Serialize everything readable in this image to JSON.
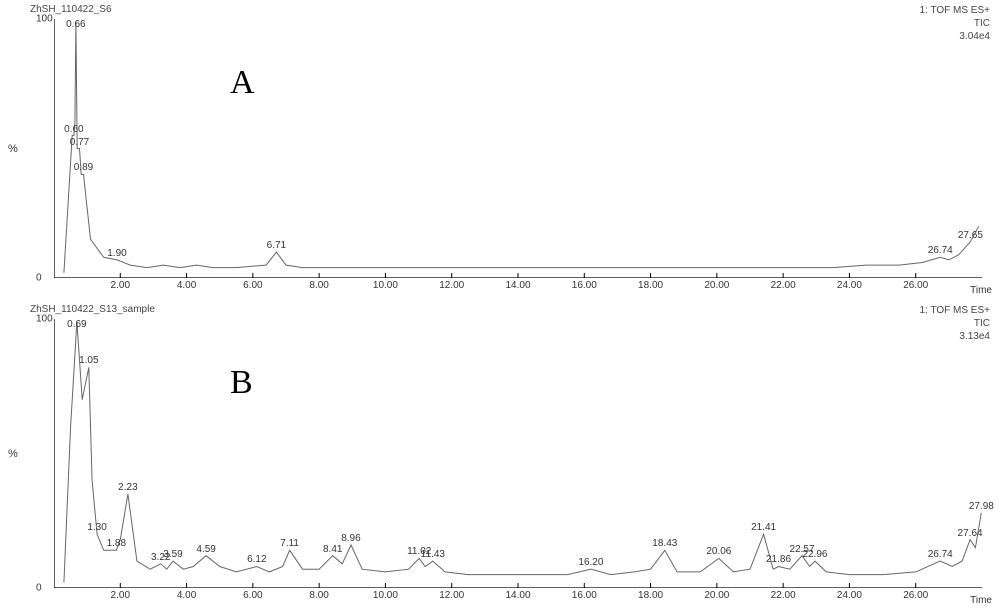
{
  "chart_a": {
    "type": "line",
    "sample_label": "ZhSH_110422_S6",
    "meta_lines": [
      "1: TOF MS ES+",
      "TIC",
      "3.04e4"
    ],
    "panel_letter": "A",
    "yaxis_label": "%",
    "xaxis_label": "Time",
    "xlim_min": 0,
    "xlim_max": 28,
    "ylim_min": 0,
    "ylim_max": 100,
    "xticks": [
      2.0,
      4.0,
      6.0,
      8.0,
      10.0,
      12.0,
      14.0,
      16.0,
      18.0,
      20.0,
      22.0,
      24.0,
      26.0
    ],
    "yticks": [
      0,
      100
    ],
    "line_color": "#666666",
    "axis_color": "#000000",
    "peaks": [
      {
        "rt": 0.6,
        "y": 55,
        "label": "0.60"
      },
      {
        "rt": 0.66,
        "y": 99,
        "label": "0.66"
      },
      {
        "rt": 0.77,
        "y": 50,
        "label": "0.77"
      },
      {
        "rt": 0.89,
        "y": 40,
        "label": "0.89"
      },
      {
        "rt": 1.9,
        "y": 7,
        "label": "1.90"
      },
      {
        "rt": 6.71,
        "y": 10,
        "label": "6.71"
      },
      {
        "rt": 26.74,
        "y": 8,
        "label": "26.74"
      },
      {
        "rt": 27.65,
        "y": 14,
        "label": "27.65"
      }
    ],
    "trace": [
      [
        0.3,
        2
      ],
      [
        0.55,
        55
      ],
      [
        0.6,
        55
      ],
      [
        0.63,
        60
      ],
      [
        0.66,
        99
      ],
      [
        0.7,
        50
      ],
      [
        0.77,
        50
      ],
      [
        0.82,
        40
      ],
      [
        0.89,
        40
      ],
      [
        1.1,
        15
      ],
      [
        1.5,
        8
      ],
      [
        1.9,
        7
      ],
      [
        2.3,
        5
      ],
      [
        2.8,
        4
      ],
      [
        3.3,
        5
      ],
      [
        3.8,
        4
      ],
      [
        4.3,
        5
      ],
      [
        4.8,
        4
      ],
      [
        5.5,
        4
      ],
      [
        6.4,
        5
      ],
      [
        6.71,
        10
      ],
      [
        7.0,
        5
      ],
      [
        7.5,
        4
      ],
      [
        8.5,
        4
      ],
      [
        10.0,
        4
      ],
      [
        12.0,
        4
      ],
      [
        14.0,
        4
      ],
      [
        16.0,
        4
      ],
      [
        18.0,
        4
      ],
      [
        20.0,
        4
      ],
      [
        22.0,
        4
      ],
      [
        23.5,
        4
      ],
      [
        24.5,
        5
      ],
      [
        25.5,
        5
      ],
      [
        26.2,
        6
      ],
      [
        26.74,
        8
      ],
      [
        27.0,
        7
      ],
      [
        27.3,
        9
      ],
      [
        27.65,
        14
      ],
      [
        27.9,
        20
      ]
    ]
  },
  "chart_b": {
    "type": "line",
    "sample_label": "ZhSH_110422_S13_sample",
    "meta_lines": [
      "1: TOF MS ES+",
      "TIC",
      "3.13e4"
    ],
    "panel_letter": "B",
    "yaxis_label": "%",
    "xaxis_label": "Time",
    "xlim_min": 0,
    "xlim_max": 28,
    "ylim_min": 0,
    "ylim_max": 100,
    "xticks": [
      2.0,
      4.0,
      6.0,
      8.0,
      10.0,
      12.0,
      14.0,
      16.0,
      18.0,
      20.0,
      22.0,
      24.0,
      26.0
    ],
    "yticks": [
      0,
      100
    ],
    "line_color": "#666666",
    "axis_color": "#000000",
    "peaks": [
      {
        "rt": 0.69,
        "y": 99,
        "label": "0.69"
      },
      {
        "rt": 1.05,
        "y": 82,
        "label": "1.05"
      },
      {
        "rt": 1.3,
        "y": 20,
        "label": "1.30"
      },
      {
        "rt": 1.88,
        "y": 14,
        "label": "1.88"
      },
      {
        "rt": 2.23,
        "y": 35,
        "label": "2.23"
      },
      {
        "rt": 3.22,
        "y": 9,
        "label": "3.22"
      },
      {
        "rt": 3.59,
        "y": 10,
        "label": "3.59"
      },
      {
        "rt": 4.59,
        "y": 12,
        "label": "4.59"
      },
      {
        "rt": 6.12,
        "y": 8,
        "label": "6.12"
      },
      {
        "rt": 7.11,
        "y": 14,
        "label": "7.11"
      },
      {
        "rt": 8.41,
        "y": 12,
        "label": "8.41"
      },
      {
        "rt": 8.96,
        "y": 16,
        "label": "8.96"
      },
      {
        "rt": 11.02,
        "y": 11,
        "label": "11.02"
      },
      {
        "rt": 11.43,
        "y": 10,
        "label": "11.43"
      },
      {
        "rt": 16.2,
        "y": 7,
        "label": "16.20"
      },
      {
        "rt": 18.43,
        "y": 14,
        "label": "18.43"
      },
      {
        "rt": 20.06,
        "y": 11,
        "label": "20.06"
      },
      {
        "rt": 21.41,
        "y": 20,
        "label": "21.41"
      },
      {
        "rt": 21.86,
        "y": 8,
        "label": "21.86"
      },
      {
        "rt": 22.57,
        "y": 12,
        "label": "22.57"
      },
      {
        "rt": 22.96,
        "y": 10,
        "label": "22.96"
      },
      {
        "rt": 26.74,
        "y": 10,
        "label": "26.74"
      },
      {
        "rt": 27.64,
        "y": 18,
        "label": "27.64"
      },
      {
        "rt": 27.98,
        "y": 28,
        "label": "27.98"
      }
    ],
    "trace": [
      [
        0.3,
        2
      ],
      [
        0.5,
        60
      ],
      [
        0.69,
        99
      ],
      [
        0.85,
        70
      ],
      [
        1.05,
        82
      ],
      [
        1.15,
        40
      ],
      [
        1.3,
        20
      ],
      [
        1.5,
        14
      ],
      [
        1.88,
        14
      ],
      [
        2.0,
        18
      ],
      [
        2.23,
        35
      ],
      [
        2.5,
        10
      ],
      [
        2.9,
        7
      ],
      [
        3.22,
        9
      ],
      [
        3.4,
        7
      ],
      [
        3.59,
        10
      ],
      [
        3.9,
        7
      ],
      [
        4.2,
        8
      ],
      [
        4.59,
        12
      ],
      [
        5.0,
        8
      ],
      [
        5.5,
        6
      ],
      [
        6.12,
        8
      ],
      [
        6.5,
        6
      ],
      [
        6.9,
        8
      ],
      [
        7.11,
        14
      ],
      [
        7.5,
        7
      ],
      [
        8.0,
        7
      ],
      [
        8.41,
        12
      ],
      [
        8.7,
        9
      ],
      [
        8.96,
        16
      ],
      [
        9.3,
        7
      ],
      [
        10.0,
        6
      ],
      [
        10.7,
        7
      ],
      [
        11.02,
        11
      ],
      [
        11.2,
        8
      ],
      [
        11.43,
        10
      ],
      [
        11.8,
        6
      ],
      [
        12.5,
        5
      ],
      [
        13.5,
        5
      ],
      [
        14.5,
        5
      ],
      [
        15.5,
        5
      ],
      [
        16.2,
        7
      ],
      [
        16.8,
        5
      ],
      [
        17.5,
        6
      ],
      [
        18.0,
        7
      ],
      [
        18.43,
        14
      ],
      [
        18.8,
        6
      ],
      [
        19.5,
        6
      ],
      [
        20.06,
        11
      ],
      [
        20.5,
        6
      ],
      [
        21.0,
        7
      ],
      [
        21.41,
        20
      ],
      [
        21.7,
        7
      ],
      [
        21.86,
        8
      ],
      [
        22.2,
        7
      ],
      [
        22.57,
        12
      ],
      [
        22.8,
        8
      ],
      [
        22.96,
        10
      ],
      [
        23.3,
        6
      ],
      [
        24.0,
        5
      ],
      [
        25.0,
        5
      ],
      [
        26.0,
        6
      ],
      [
        26.74,
        10
      ],
      [
        27.1,
        8
      ],
      [
        27.4,
        10
      ],
      [
        27.64,
        18
      ],
      [
        27.8,
        15
      ],
      [
        27.98,
        28
      ]
    ]
  }
}
